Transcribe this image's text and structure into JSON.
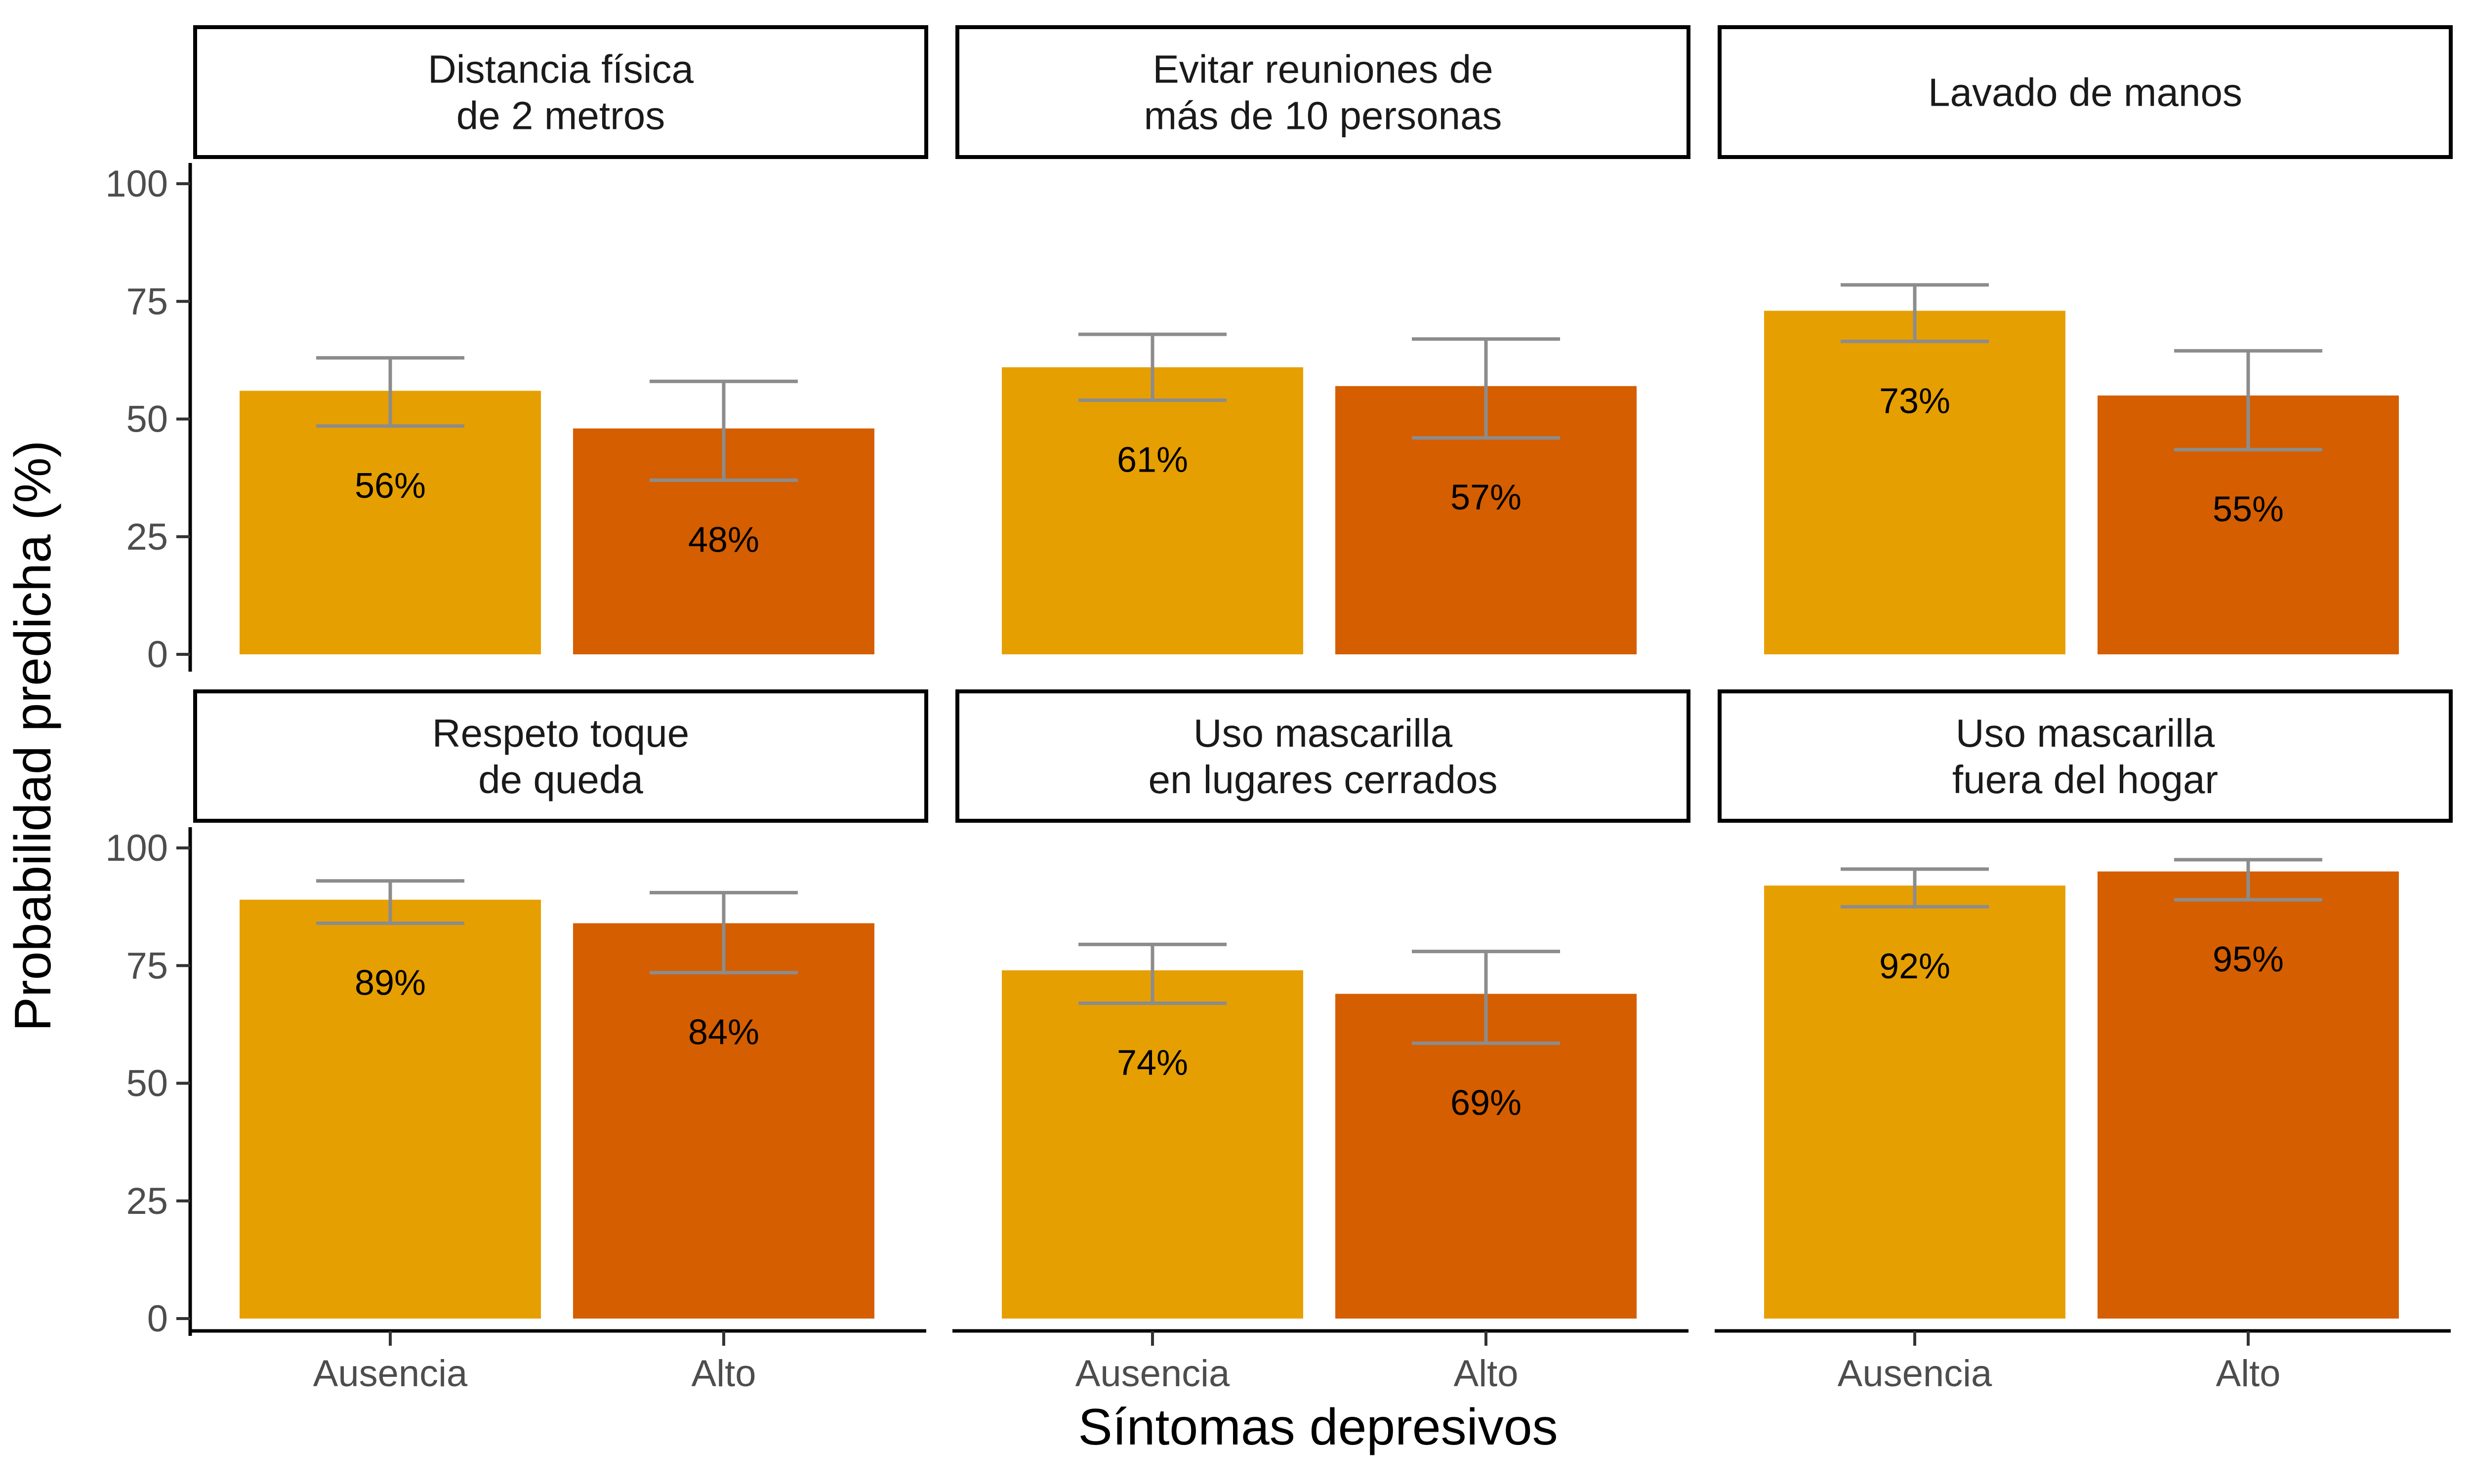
{
  "chart_data": {
    "type": "bar",
    "layout": "facet-grid 2x3",
    "xlabel": "Síntomas depresivos",
    "ylabel": "Probabilidad predicha (%)",
    "ylim": [
      0,
      100
    ],
    "yticks": [
      0,
      25,
      50,
      75,
      100
    ],
    "categories": [
      "Ausencia",
      "Alto"
    ],
    "colors": {
      "Ausencia": "#E69F00",
      "Alto": "#D55E00"
    },
    "errorbar_color": "#8c8c8c",
    "grid": false,
    "legend": "none",
    "facets": [
      {
        "title": [
          "Distancia física",
          "de 2 metros"
        ],
        "values": [
          56,
          48
        ],
        "labels": [
          "56%",
          "48%"
        ],
        "ci_low": [
          48.5,
          37
        ],
        "ci_high": [
          63,
          58
        ]
      },
      {
        "title": [
          "Evitar reuniones de",
          "más de 10 personas"
        ],
        "values": [
          61,
          57
        ],
        "labels": [
          "61%",
          "57%"
        ],
        "ci_low": [
          54,
          46
        ],
        "ci_high": [
          68,
          67
        ]
      },
      {
        "title": [
          "Lavado de manos"
        ],
        "values": [
          73,
          55
        ],
        "labels": [
          "73%",
          "55%"
        ],
        "ci_low": [
          66.5,
          43.5
        ],
        "ci_high": [
          78.5,
          64.5
        ]
      },
      {
        "title": [
          "Respeto toque",
          "de queda"
        ],
        "values": [
          89,
          84
        ],
        "labels": [
          "89%",
          "84%"
        ],
        "ci_low": [
          84,
          73.5
        ],
        "ci_high": [
          93,
          90.5
        ]
      },
      {
        "title": [
          "Uso mascarilla",
          "en lugares cerrados"
        ],
        "values": [
          74,
          69
        ],
        "labels": [
          "74%",
          "69%"
        ],
        "ci_low": [
          67,
          58.5
        ],
        "ci_high": [
          79.5,
          78
        ]
      },
      {
        "title": [
          "Uso mascarilla",
          "fuera del hogar"
        ],
        "values": [
          92,
          95
        ],
        "labels": [
          "92%",
          "95%"
        ],
        "ci_low": [
          87.5,
          89
        ],
        "ci_high": [
          95.5,
          97.5
        ]
      }
    ]
  }
}
